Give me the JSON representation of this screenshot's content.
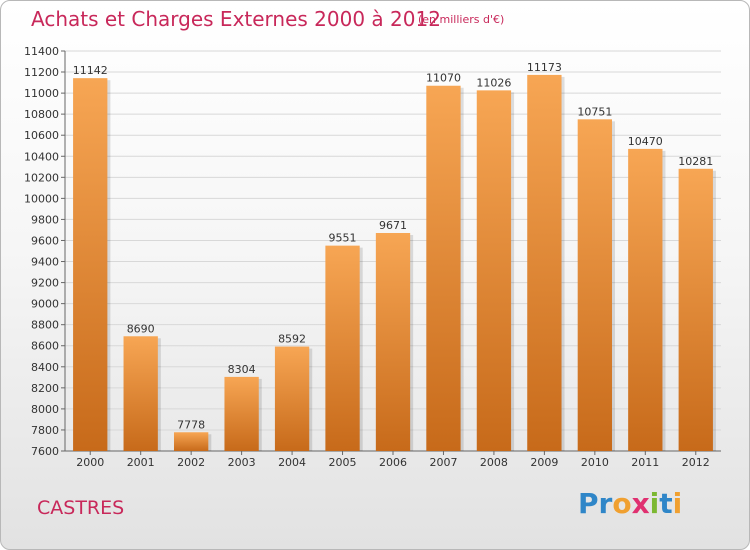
{
  "header": {
    "title": "Achats et Charges Externes 2000 à 2012",
    "subtitle": "(en milliers d'€)"
  },
  "footer": {
    "city": "CASTRES",
    "logo_letters": [
      {
        "char": "P",
        "color": "#2f86c8"
      },
      {
        "char": "r",
        "color": "#2f86c8"
      },
      {
        "char": "o",
        "color": "#f0a030"
      },
      {
        "char": "x",
        "color": "#e03070"
      },
      {
        "char": "i",
        "color": "#7cb832"
      },
      {
        "char": "t",
        "color": "#2f86c8"
      },
      {
        "char": "i",
        "color": "#f0a030"
      }
    ]
  },
  "colors": {
    "bar_light": "#f7a654",
    "bar_dark": "#c76a1a",
    "accent": "#c8285a"
  },
  "chart_data": {
    "type": "bar",
    "title": "Achats et Charges Externes 2000 à 2012",
    "subtitle": "(en milliers d'€)",
    "xlabel": "",
    "ylabel": "",
    "categories": [
      "2000",
      "2001",
      "2002",
      "2003",
      "2004",
      "2005",
      "2006",
      "2007",
      "2008",
      "2009",
      "2010",
      "2011",
      "2012"
    ],
    "values": [
      11142,
      8690,
      7778,
      8304,
      8592,
      9551,
      9671,
      11070,
      11026,
      11173,
      10751,
      10470,
      10281
    ],
    "ylim": [
      7600,
      11400
    ],
    "yticks": [
      7600,
      7800,
      8000,
      8200,
      8400,
      8600,
      8800,
      9000,
      9200,
      9400,
      9600,
      9800,
      10000,
      10200,
      10400,
      10600,
      10800,
      11000,
      11200,
      11400
    ],
    "grid": true,
    "legend": "none"
  }
}
